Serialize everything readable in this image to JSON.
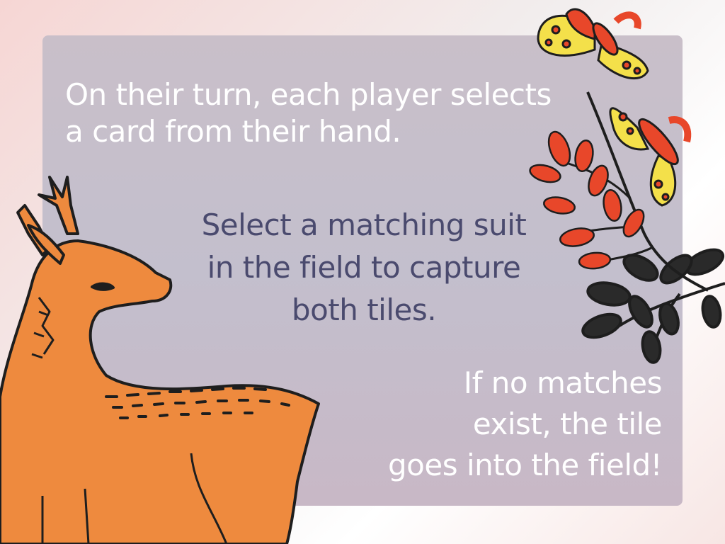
{
  "tutorial": {
    "step1": "On their turn, each player selects\na card from their hand.",
    "step2": "Select a matching suit\nin the field to capture\nboth tiles.",
    "step3": "If no matches\nexist, the tile\ngoes into the field!"
  },
  "colors": {
    "panel": "#c6bfcc",
    "text_light": "#ffffff",
    "text_dark": "#4a4a6e",
    "deer_orange": "#ee8a3e",
    "leaf_red": "#e8472a",
    "leaf_black": "#2a2a2a",
    "moth_yellow": "#f4e04a"
  },
  "illustrations": [
    "deer-illustration",
    "moth-illustration",
    "berry-branch-illustration",
    "leaf-branch-illustration"
  ]
}
